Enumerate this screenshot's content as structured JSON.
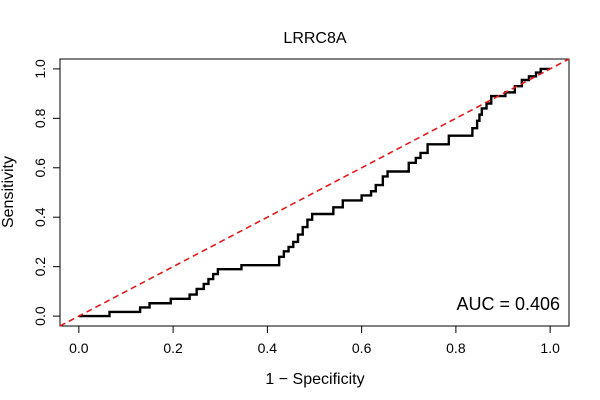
{
  "chart_data": {
    "type": "line",
    "title": "LRRC8A",
    "xlabel": "1 − Specificity",
    "ylabel": "Sensitivity",
    "xlim": [
      -0.04,
      1.04
    ],
    "ylim": [
      -0.04,
      1.04
    ],
    "x_ticks": [
      0.0,
      0.2,
      0.4,
      0.6,
      0.8,
      1.0
    ],
    "x_tick_labels": [
      "0.0",
      "0.2",
      "0.4",
      "0.6",
      "0.8",
      "1.0"
    ],
    "y_ticks": [
      0.0,
      0.2,
      0.4,
      0.6,
      0.8,
      1.0
    ],
    "y_tick_labels": [
      "0.0",
      "0.2",
      "0.4",
      "0.6",
      "0.8",
      "1.0"
    ],
    "grid": false,
    "annotation": "AUC = 0.406",
    "series": [
      {
        "style": "roc-step",
        "color": "#000000",
        "x": [
          0.0,
          0.065,
          0.065,
          0.13,
          0.13,
          0.15,
          0.15,
          0.195,
          0.195,
          0.235,
          0.235,
          0.25,
          0.25,
          0.265,
          0.265,
          0.275,
          0.275,
          0.285,
          0.285,
          0.295,
          0.295,
          0.345,
          0.345,
          0.425,
          0.425,
          0.435,
          0.435,
          0.445,
          0.445,
          0.455,
          0.455,
          0.465,
          0.465,
          0.475,
          0.475,
          0.485,
          0.485,
          0.495,
          0.495,
          0.54,
          0.54,
          0.56,
          0.56,
          0.6,
          0.6,
          0.62,
          0.62,
          0.63,
          0.63,
          0.645,
          0.645,
          0.655,
          0.655,
          0.7,
          0.7,
          0.715,
          0.715,
          0.725,
          0.725,
          0.74,
          0.74,
          0.785,
          0.785,
          0.835,
          0.835,
          0.845,
          0.845,
          0.85,
          0.85,
          0.855,
          0.855,
          0.865,
          0.865,
          0.875,
          0.875,
          0.905,
          0.905,
          0.925,
          0.925,
          0.94,
          0.94,
          0.955,
          0.955,
          0.97,
          0.97,
          0.98,
          0.98,
          1.0
        ],
        "y": [
          0.0,
          0.0,
          0.017,
          0.017,
          0.035,
          0.035,
          0.052,
          0.052,
          0.07,
          0.07,
          0.087,
          0.087,
          0.11,
          0.11,
          0.13,
          0.13,
          0.15,
          0.15,
          0.17,
          0.17,
          0.19,
          0.19,
          0.206,
          0.206,
          0.24,
          0.24,
          0.262,
          0.262,
          0.28,
          0.28,
          0.3,
          0.3,
          0.33,
          0.33,
          0.36,
          0.36,
          0.39,
          0.39,
          0.413,
          0.413,
          0.44,
          0.44,
          0.468,
          0.468,
          0.488,
          0.488,
          0.505,
          0.505,
          0.53,
          0.53,
          0.565,
          0.565,
          0.585,
          0.585,
          0.62,
          0.62,
          0.64,
          0.64,
          0.66,
          0.66,
          0.695,
          0.695,
          0.73,
          0.73,
          0.76,
          0.76,
          0.79,
          0.79,
          0.815,
          0.815,
          0.84,
          0.84,
          0.86,
          0.86,
          0.89,
          0.89,
          0.905,
          0.905,
          0.93,
          0.93,
          0.955,
          0.955,
          0.97,
          0.97,
          0.985,
          0.985,
          1.0,
          1.0
        ]
      },
      {
        "style": "reference-diagonal",
        "color": "#e31a1c",
        "dashed": true,
        "x": [
          -0.04,
          1.04
        ],
        "y": [
          -0.04,
          1.04
        ]
      }
    ]
  }
}
